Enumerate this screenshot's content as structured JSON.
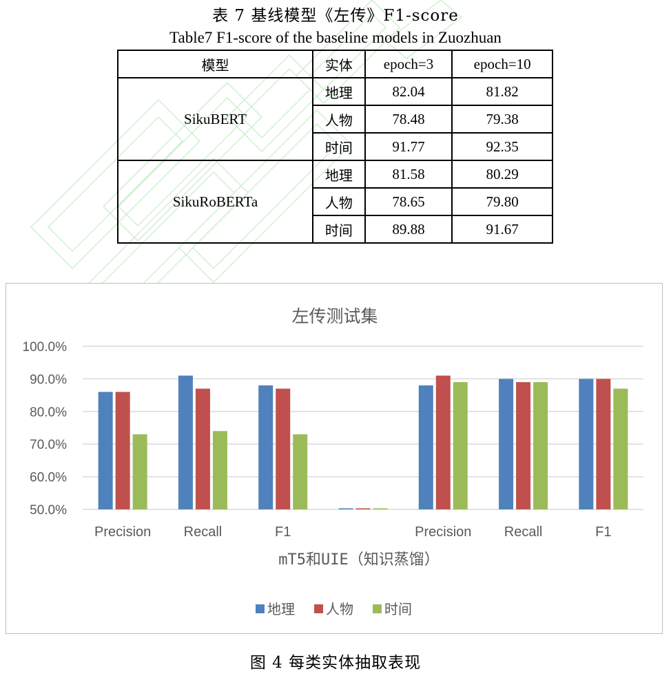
{
  "table": {
    "caption_cn": "表 7  基线模型《左传》F1-score",
    "caption_en": "Table7 F1-score of the baseline models in Zuozhuan",
    "headers": [
      "模型",
      "实体",
      "epoch=3",
      "epoch=10"
    ],
    "groups": [
      {
        "model": "SikuBERT",
        "rows": [
          {
            "entity": "地理",
            "e3": "82.04",
            "e10": "81.82"
          },
          {
            "entity": "人物",
            "e3": "78.48",
            "e10": "79.38"
          },
          {
            "entity": "时间",
            "e3": "91.77",
            "e10": "92.35"
          }
        ]
      },
      {
        "model": "SikuRoBERTa",
        "rows": [
          {
            "entity": "地理",
            "e3": "81.58",
            "e10": "80.29"
          },
          {
            "entity": "人物",
            "e3": "78.65",
            "e10": "79.80"
          },
          {
            "entity": "时间",
            "e3": "89.88",
            "e10": "91.67"
          }
        ]
      }
    ]
  },
  "chart_data": {
    "type": "bar",
    "title": "左传测试集",
    "xlabel": "mT5和UIE（知识蒸馏）",
    "ylabel": "",
    "ylim": [
      0.5,
      1.0
    ],
    "yticks": [
      "100.0%",
      "90.0%",
      "80.0%",
      "70.0%",
      "60.0%",
      "50.0%"
    ],
    "categories": [
      "Precision",
      "Recall",
      "F1",
      "",
      "Precision",
      "Recall",
      "F1"
    ],
    "series": [
      {
        "name": "地理",
        "color": "#4f81bd",
        "values": [
          0.86,
          0.91,
          0.88,
          0.5,
          0.88,
          0.9,
          0.9
        ]
      },
      {
        "name": "人物",
        "color": "#c0504d",
        "values": [
          0.86,
          0.87,
          0.87,
          0.5,
          0.91,
          0.89,
          0.9
        ]
      },
      {
        "name": "时间",
        "color": "#9bbb59",
        "values": [
          0.73,
          0.74,
          0.73,
          0.5,
          0.89,
          0.89,
          0.87
        ]
      }
    ],
    "grid": true,
    "legend": "bottom"
  },
  "figure": {
    "caption": "图 4  每类实体抽取表现"
  }
}
